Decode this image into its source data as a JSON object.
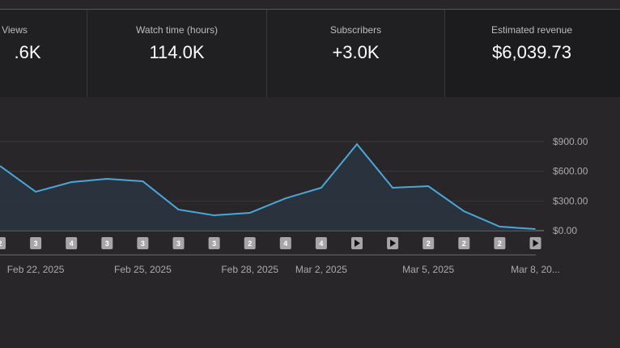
{
  "metrics": [
    {
      "label": "Views",
      "value": ".6K",
      "partial": true
    },
    {
      "label": "Watch time (hours)",
      "value": "114.0K"
    },
    {
      "label": "Subscribers",
      "value": "+3.0K"
    },
    {
      "label": "Estimated revenue",
      "value": "$6,039.73"
    }
  ],
  "colors": {
    "line": "#4aa8d8",
    "fill": "#2a3440",
    "badge": "#a6a6a6"
  },
  "chart_data": {
    "type": "area",
    "x": [
      "Feb 21, 2025",
      "Feb 22, 2025",
      "Feb 23, 2025",
      "Feb 24, 2025",
      "Feb 25, 2025",
      "Feb 26, 2025",
      "Feb 27, 2025",
      "Feb 28, 2025",
      "Mar 1, 2025",
      "Mar 2, 2025",
      "Mar 3, 2025",
      "Mar 4, 2025",
      "Mar 5, 2025",
      "Mar 6, 2025",
      "Mar 7, 2025",
      "Mar 8, 2025"
    ],
    "values": [
      654,
      393,
      491,
      524,
      499,
      213,
      155,
      180,
      327,
      434,
      875,
      434,
      450,
      196,
      41,
      16
    ],
    "ylim": [
      0,
      900
    ],
    "yticks": [
      "$0.00",
      "$300.00",
      "$600.00",
      "$900.00"
    ],
    "ytick_values": [
      0,
      300,
      600,
      900
    ],
    "xtick_labels": [
      {
        "index": 1,
        "label": "Feb 22, 2025"
      },
      {
        "index": 4,
        "label": "Feb 25, 2025"
      },
      {
        "index": 7,
        "label": "Feb 28, 2025"
      },
      {
        "index": 9,
        "label": "Mar 2, 2025"
      },
      {
        "index": 12,
        "label": "Mar 5, 2025"
      },
      {
        "index": 15,
        "label": "Mar 8, 20..."
      }
    ],
    "grid": true,
    "markers": [
      "2",
      "3",
      "4",
      "3",
      "3",
      "3",
      "3",
      "2",
      "4",
      "4",
      "play",
      "play",
      "2",
      "2",
      "2",
      "play"
    ]
  }
}
